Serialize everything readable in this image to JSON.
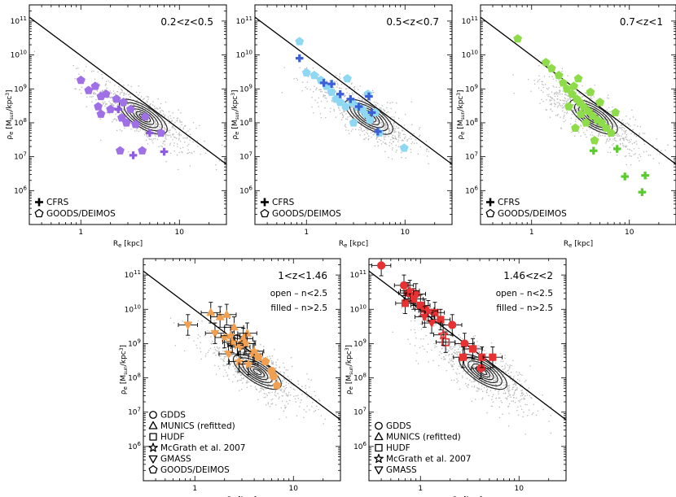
{
  "chart_data": [
    {
      "type": "scatter",
      "title": "0.2<z<0.5",
      "xlabel": "R_e [kpc]",
      "ylabel": "ρ_e [M_sun/kpc^3]",
      "xscale": "log",
      "yscale": "log",
      "xlim": [
        0.3,
        30
      ],
      "ylim": [
        100000.0,
        300000000000.0
      ],
      "xticks": [
        {
          "v": 1,
          "label": "1"
        },
        {
          "v": 10,
          "label": "10"
        }
      ],
      "yticks": [
        {
          "v": 1000000.0,
          "label": "10^6"
        },
        {
          "v": 10000000.0,
          "label": "10^7"
        },
        {
          "v": 100000000.0,
          "label": "10^8"
        },
        {
          "v": 1000000000.0,
          "label": "10^9"
        },
        {
          "v": 10000000000.0,
          "label": "10^10"
        },
        {
          "v": 100000000000.0,
          "label": "10^11"
        }
      ],
      "line": {
        "x": [
          0.3,
          30
        ],
        "y": [
          130000000000.0,
          6000000.0
        ]
      },
      "notes": [],
      "legend": [
        {
          "marker": "plus",
          "label": "CFRS"
        },
        {
          "marker": "pentagon",
          "label": "GOODS/DEIMOS"
        }
      ],
      "series": [
        {
          "marker": "pentagon",
          "color": "#9f70e6",
          "filled": true,
          "points": [
            [
              1.0,
              1800000000.0
            ],
            [
              1.2,
              900000000.0
            ],
            [
              1.4,
              1200000000.0
            ],
            [
              1.8,
              700000000.0
            ],
            [
              1.6,
              600000000.0
            ],
            [
              2.3,
              500000000.0
            ],
            [
              2.7,
              400000000.0
            ],
            [
              3.2,
              250000000.0
            ],
            [
              2.0,
              250000000.0
            ],
            [
              1.6,
              180000000.0
            ],
            [
              2.6,
              140000000.0
            ],
            [
              2.9,
              100000000.0
            ],
            [
              3.6,
              90000000.0
            ],
            [
              2.5,
              15000000.0
            ],
            [
              4.2,
              15000000.0
            ],
            [
              6.5,
              50000000.0
            ],
            [
              4.5,
              150000000.0
            ],
            [
              1.5,
              300000000.0
            ]
          ]
        },
        {
          "marker": "plus",
          "color": "#8f5be0",
          "points": [
            [
              2.4,
              250000000.0
            ],
            [
              3.4,
              11000000.0
            ],
            [
              5.0,
              50000000.0
            ],
            [
              7.0,
              14000000.0
            ]
          ]
        }
      ]
    },
    {
      "type": "scatter",
      "title": "0.5<z<0.7",
      "xlabel": "R_e [kpc]",
      "ylabel": "ρ_e [M_sun/kpc^3]",
      "xscale": "log",
      "yscale": "log",
      "xlim": [
        0.3,
        30
      ],
      "ylim": [
        100000.0,
        300000000000.0
      ],
      "xticks": [
        {
          "v": 1,
          "label": "1"
        },
        {
          "v": 10,
          "label": "10"
        }
      ],
      "yticks": [
        {
          "v": 1000000.0,
          "label": "10^6"
        },
        {
          "v": 10000000.0,
          "label": "10^7"
        },
        {
          "v": 100000000.0,
          "label": "10^8"
        },
        {
          "v": 1000000000.0,
          "label": "10^9"
        },
        {
          "v": 10000000000.0,
          "label": "10^10"
        },
        {
          "v": 100000000000.0,
          "label": "10^11"
        }
      ],
      "line": {
        "x": [
          0.3,
          30
        ],
        "y": [
          130000000000.0,
          6000000.0
        ]
      },
      "notes": [],
      "legend": [
        {
          "marker": "plus",
          "label": "CFRS"
        },
        {
          "marker": "pentagon",
          "label": "GOODS/DEIMOS"
        }
      ],
      "series": [
        {
          "marker": "pentagon",
          "color": "#8fd8f4",
          "filled": true,
          "points": [
            [
              0.85,
              25000000000.0
            ],
            [
              1.0,
              3000000000.0
            ],
            [
              1.2,
              2500000000.0
            ],
            [
              1.4,
              1800000000.0
            ],
            [
              1.6,
              1200000000.0
            ],
            [
              1.8,
              800000000.0
            ],
            [
              2.0,
              500000000.0
            ],
            [
              2.2,
              400000000.0
            ],
            [
              2.5,
              300000000.0
            ],
            [
              2.9,
              400000000.0
            ],
            [
              3.3,
              300000000.0
            ],
            [
              3.7,
              250000000.0
            ],
            [
              4.0,
              180000000.0
            ],
            [
              4.4,
              120000000.0
            ],
            [
              3.0,
              100000000.0
            ],
            [
              5.0,
              200000000.0
            ],
            [
              5.5,
              50000000.0
            ],
            [
              9.8,
              18000000.0
            ],
            [
              2.6,
              2000000000.0
            ],
            [
              4.2,
              700000000.0
            ]
          ]
        },
        {
          "marker": "plus",
          "color": "#3a5fd6",
          "points": [
            [
              0.85,
              8000000000.0
            ],
            [
              1.5,
              1500000000.0
            ],
            [
              1.8,
              1400000000.0
            ],
            [
              2.2,
              700000000.0
            ],
            [
              2.8,
              500000000.0
            ],
            [
              3.4,
              300000000.0
            ],
            [
              4.3,
              600000000.0
            ],
            [
              4.6,
              200000000.0
            ],
            [
              5.3,
              55000000.0
            ]
          ]
        }
      ]
    },
    {
      "type": "scatter",
      "title": "0.7<z<1",
      "xlabel": "R_e [kpc]",
      "ylabel": "ρ_e [M_sun/kpc^3]",
      "xscale": "log",
      "yscale": "log",
      "xlim": [
        0.3,
        30
      ],
      "ylim": [
        100000.0,
        300000000000.0
      ],
      "xticks": [
        {
          "v": 1,
          "label": "1"
        },
        {
          "v": 10,
          "label": "10"
        }
      ],
      "yticks": [
        {
          "v": 1000000.0,
          "label": "10^6"
        },
        {
          "v": 10000000.0,
          "label": "10^7"
        },
        {
          "v": 100000000.0,
          "label": "10^8"
        },
        {
          "v": 1000000000.0,
          "label": "10^9"
        },
        {
          "v": 10000000000.0,
          "label": "10^10"
        },
        {
          "v": 100000000000.0,
          "label": "10^11"
        }
      ],
      "line": {
        "x": [
          0.3,
          30
        ],
        "y": [
          130000000000.0,
          6000000.0
        ]
      },
      "notes": [],
      "legend": [
        {
          "marker": "plus",
          "label": "CFRS"
        },
        {
          "marker": "pentagon",
          "label": "GOODS/DEIMOS"
        }
      ],
      "series": [
        {
          "marker": "pentagon",
          "color": "#8edc4a",
          "filled": true,
          "points": [
            [
              0.72,
              30000000000.0
            ],
            [
              1.4,
              6000000000.0
            ],
            [
              1.6,
              4000000000.0
            ],
            [
              1.9,
              2500000000.0
            ],
            [
              2.1,
              1500000000.0
            ],
            [
              2.3,
              1000000000.0
            ],
            [
              2.6,
              700000000.0
            ],
            [
              2.9,
              500000000.0
            ],
            [
              3.1,
              400000000.0
            ],
            [
              3.4,
              300000000.0
            ],
            [
              3.8,
              220000000.0
            ],
            [
              4.2,
              160000000.0
            ],
            [
              4.7,
              120000000.0
            ],
            [
              5.2,
              100000000.0
            ],
            [
              5.8,
              70000000.0
            ],
            [
              6.5,
              50000000.0
            ],
            [
              3.0,
              2000000000.0
            ],
            [
              2.7,
              1200000000.0
            ],
            [
              4.0,
              800000000.0
            ],
            [
              2.4,
              300000000.0
            ],
            [
              3.6,
              100000000.0
            ],
            [
              5.0,
              400000000.0
            ],
            [
              2.8,
              70000000.0
            ],
            [
              4.4,
              30000000.0
            ],
            [
              7.2,
              200000000.0
            ],
            [
              3.2,
              180000000.0
            ]
          ]
        },
        {
          "marker": "plus",
          "color": "#5acb2c",
          "points": [
            [
              4.3,
              15000000.0
            ],
            [
              7.5,
              17000000.0
            ],
            [
              9.0,
              2600000.0
            ],
            [
              14.5,
              2800000.0
            ],
            [
              13.5,
              900000.0
            ]
          ]
        }
      ]
    },
    {
      "type": "scatter",
      "title": "1<z<1.46",
      "xlabel": "R_e [kpc]",
      "ylabel": "ρ_e [M_sun/kpc^3]",
      "xscale": "log",
      "yscale": "log",
      "xlim": [
        0.3,
        30
      ],
      "ylim": [
        100000.0,
        300000000000.0
      ],
      "xticks": [
        {
          "v": 1,
          "label": "1"
        },
        {
          "v": 10,
          "label": "10"
        }
      ],
      "yticks": [
        {
          "v": 1000000.0,
          "label": "10^6"
        },
        {
          "v": 10000000.0,
          "label": "10^7"
        },
        {
          "v": 100000000.0,
          "label": "10^8"
        },
        {
          "v": 1000000000.0,
          "label": "10^9"
        },
        {
          "v": 10000000000.0,
          "label": "10^10"
        },
        {
          "v": 100000000000.0,
          "label": "10^11"
        }
      ],
      "line": {
        "x": [
          0.3,
          30
        ],
        "y": [
          130000000000.0,
          6000000.0
        ]
      },
      "notes": [
        "open – n<2.5",
        "filled – n>2.5"
      ],
      "legend": [
        {
          "marker": "circle",
          "label": "GDDS"
        },
        {
          "marker": "triangle",
          "label": "MUNICS (refitted)"
        },
        {
          "marker": "square",
          "label": "HUDF"
        },
        {
          "marker": "star",
          "label": "McGrath et al. 2007"
        },
        {
          "marker": "triangle-down",
          "label": "GMASS"
        },
        {
          "marker": "pentagon",
          "label": "GOODS/DEIMOS"
        }
      ],
      "series": [
        {
          "marker": "triangle-down",
          "color": "#f0a050",
          "filled": true,
          "errors": true,
          "points": [
            [
              0.85,
              3500000000.0
            ],
            [
              1.6,
              2000000000.0
            ],
            [
              2.2,
              500000000.0
            ],
            [
              2.9,
              800000000.0
            ]
          ]
        },
        {
          "marker": "triangle",
          "color": "#f0a050",
          "filled": true,
          "errors": true,
          "points": [
            [
              1.45,
              8000000000.0
            ],
            [
              1.8,
              6000000000.0
            ],
            [
              2.1,
              7000000000.0
            ],
            [
              2.5,
              3000000000.0
            ],
            [
              3.4,
              2000000000.0
            ],
            [
              3.1,
              1400000000.0
            ]
          ]
        },
        {
          "marker": "star",
          "color": "#f0a050",
          "filled": true,
          "errors": true,
          "points": [
            [
              2.0,
              1500000000.0
            ],
            [
              2.4,
              1100000000.0
            ],
            [
              2.7,
              900000000.0
            ],
            [
              3.3,
              1000000000.0
            ],
            [
              3.9,
              500000000.0
            ],
            [
              2.8,
              300000000.0
            ],
            [
              3.5,
              250000000.0
            ],
            [
              4.0,
              600000000.0
            ],
            [
              2.3,
              1700000000.0
            ]
          ]
        },
        {
          "marker": "circle",
          "color": "#f0a050",
          "filled": true,
          "errors": false,
          "points": [
            [
              6.0,
              160000000.0
            ]
          ]
        },
        {
          "marker": "pentagon",
          "color": "#f0a050",
          "filled": true,
          "errors": false,
          "points": [
            [
              4.4,
              400000000.0
            ],
            [
              5.2,
              300000000.0
            ],
            [
              6.3,
              110000000.0
            ],
            [
              6.8,
              60000000.0
            ]
          ]
        }
      ]
    },
    {
      "type": "scatter",
      "title": "1.46<z<2",
      "xlabel": "R_e [kpc]",
      "ylabel": "ρ_e [M_sun/kpc^3]",
      "xscale": "log",
      "yscale": "log",
      "xlim": [
        0.3,
        30
      ],
      "ylim": [
        100000.0,
        300000000000.0
      ],
      "xticks": [
        {
          "v": 1,
          "label": "1"
        },
        {
          "v": 10,
          "label": "10"
        }
      ],
      "yticks": [
        {
          "v": 1000000.0,
          "label": "10^6"
        },
        {
          "v": 10000000.0,
          "label": "10^7"
        },
        {
          "v": 100000000.0,
          "label": "10^8"
        },
        {
          "v": 1000000000.0,
          "label": "10^9"
        },
        {
          "v": 10000000000.0,
          "label": "10^10"
        },
        {
          "v": 100000000000.0,
          "label": "10^11"
        }
      ],
      "line": {
        "x": [
          0.3,
          30
        ],
        "y": [
          130000000000.0,
          6000000.0
        ]
      },
      "notes": [
        "open – n<2.5",
        "filled – n>2.5"
      ],
      "legend": [
        {
          "marker": "circle",
          "label": "GDDS"
        },
        {
          "marker": "triangle",
          "label": "MUNICS (refitted)"
        },
        {
          "marker": "square",
          "label": "HUDF"
        },
        {
          "marker": "star",
          "label": "McGrath et al. 2007"
        },
        {
          "marker": "triangle-down",
          "label": "GMASS"
        }
      ],
      "series": [
        {
          "marker": "circle",
          "color": "#e63232",
          "filled": true,
          "errors": true,
          "points": [
            [
              0.4,
              190000000000.0
            ],
            [
              0.68,
              50000000000.0
            ],
            [
              0.75,
              30000000000.0
            ],
            [
              0.9,
              28000000000.0
            ],
            [
              2.1,
              3500000000.0
            ],
            [
              2.8,
              1000000000.0
            ],
            [
              4.1,
              190000000.0
            ]
          ]
        },
        {
          "marker": "square",
          "color": "#e63232",
          "filled": true,
          "errors": true,
          "points": [
            [
              0.7,
              15000000000.0
            ],
            [
              0.85,
              20000000000.0
            ],
            [
              1.0,
              13000000000.0
            ],
            [
              1.1,
              10000000000.0
            ],
            [
              1.4,
              8000000000.0
            ],
            [
              1.6,
              5000000000.0
            ],
            [
              2.7,
              400000000.0
            ],
            [
              3.4,
              700000000.0
            ],
            [
              4.2,
              400000000.0
            ],
            [
              5.4,
              400000000.0
            ]
          ]
        },
        {
          "marker": "square",
          "color": "#e63232",
          "filled": false,
          "errors": true,
          "points": [
            [
              1.8,
              1100000000.0
            ]
          ]
        },
        {
          "marker": "triangle-down",
          "color": "#e63232",
          "filled": true,
          "errors": true,
          "points": [
            [
              1.1,
              6000000000.0
            ],
            [
              1.3,
              4000000000.0
            ]
          ]
        },
        {
          "marker": "star",
          "color": "#e63232",
          "filled": true,
          "errors": true,
          "points": [
            [
              0.78,
              35000000000.0
            ],
            [
              1.2,
              9000000000.0
            ]
          ]
        },
        {
          "marker": "star",
          "color": "#e63232",
          "filled": false,
          "errors": true,
          "points": [
            [
              1.7,
              1800000000.0
            ]
          ]
        }
      ]
    }
  ]
}
